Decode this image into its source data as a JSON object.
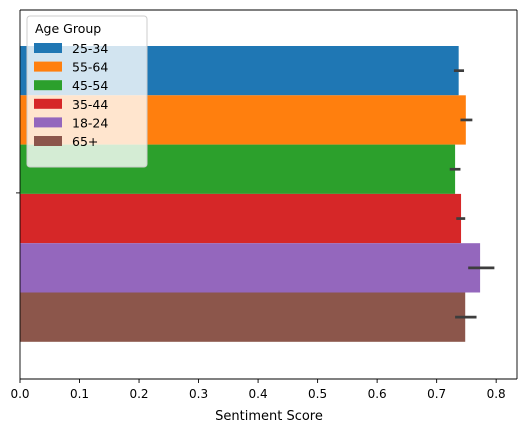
{
  "chart_data": {
    "type": "bar",
    "orientation": "horizontal",
    "xlabel": "Sentiment Score",
    "ylabel": "",
    "xlim": [
      0,
      0.835
    ],
    "xticks": [
      0.0,
      0.1,
      0.2,
      0.3,
      0.4,
      0.5,
      0.6,
      0.7,
      0.8
    ],
    "xtick_labels": [
      "0.0",
      "0.1",
      "0.2",
      "0.3",
      "0.4",
      "0.5",
      "0.6",
      "0.7",
      "0.8"
    ],
    "grid": false,
    "legend": {
      "title": "Age Group",
      "placement": "top-left"
    },
    "series": [
      {
        "name": "25-34",
        "value": 0.737,
        "ci": [
          0.729,
          0.746
        ],
        "color": "#1f77b4"
      },
      {
        "name": "55-64",
        "value": 0.749,
        "ci": [
          0.74,
          0.76
        ],
        "color": "#ff7f0e"
      },
      {
        "name": "45-54",
        "value": 0.731,
        "ci": [
          0.722,
          0.74
        ],
        "color": "#2ca02c"
      },
      {
        "name": "35-44",
        "value": 0.741,
        "ci": [
          0.733,
          0.748
        ],
        "color": "#d62728"
      },
      {
        "name": "18-24",
        "value": 0.773,
        "ci": [
          0.753,
          0.797
        ],
        "color": "#9467bd"
      },
      {
        "name": "65+",
        "value": 0.748,
        "ci": [
          0.731,
          0.767
        ],
        "color": "#8c564b"
      }
    ]
  }
}
